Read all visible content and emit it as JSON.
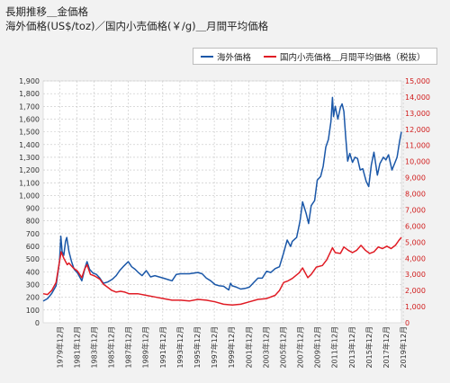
{
  "title_lines": [
    "長期推移＿金価格",
    "海外価格(US$/toz)／国内小売価格(￥/g)＿月間平均価格"
  ],
  "legend": [
    {
      "label": "海外価格",
      "color": "#1a57a8"
    },
    {
      "label": "国内小売価格＿月間平均価格（税抜）",
      "color": "#e01b24"
    }
  ],
  "chart_data": {
    "type": "line",
    "left_axis": {
      "min": 0,
      "max": 1900,
      "step": 100,
      "ticks": [
        "0",
        "100",
        "200",
        "300",
        "400",
        "500",
        "600",
        "700",
        "800",
        "900",
        "1,000",
        "1,100",
        "1,200",
        "1,300",
        "1,400",
        "1,500",
        "1,600",
        "1,700",
        "1,800",
        "1,900"
      ]
    },
    "right_axis": {
      "min": 0,
      "max": 15000,
      "step": 1000,
      "ticks": [
        "0",
        "1,000",
        "2,000",
        "3,000",
        "4,000",
        "5,000",
        "6,000",
        "7,000",
        "8,000",
        "9,000",
        "10,000",
        "11,000",
        "12,000",
        "13,000",
        "14,000",
        "15,000"
      ]
    },
    "x_range": [
      1978,
      2019.7
    ],
    "x_labels": [
      "1979年12月",
      "1981年12月",
      "1983年12月",
      "1985年12月",
      "1987年12月",
      "1989年12月",
      "1991年12月",
      "1993年12月",
      "1995年12月",
      "1997年12月",
      "1999年12月",
      "2001年12月",
      "2003年12月",
      "2005年12月",
      "2007年12月",
      "2009年12月",
      "2011年12月",
      "2013年12月",
      "2015年12月",
      "2017年12月",
      "2019年12月"
    ],
    "series": [
      {
        "name": "海外価格",
        "axis": "left",
        "points": [
          [
            1978.0,
            170
          ],
          [
            1978.5,
            190
          ],
          [
            1979.0,
            230
          ],
          [
            1979.5,
            290
          ],
          [
            1979.9,
            480
          ],
          [
            1980.05,
            680
          ],
          [
            1980.2,
            560
          ],
          [
            1980.4,
            530
          ],
          [
            1980.6,
            640
          ],
          [
            1980.75,
            670
          ],
          [
            1981.0,
            560
          ],
          [
            1981.3,
            480
          ],
          [
            1981.6,
            420
          ],
          [
            1982.0,
            390
          ],
          [
            1982.5,
            330
          ],
          [
            1982.9,
            440
          ],
          [
            1983.1,
            480
          ],
          [
            1983.4,
            420
          ],
          [
            1983.8,
            390
          ],
          [
            1984.2,
            380
          ],
          [
            1984.6,
            350
          ],
          [
            1985.0,
            310
          ],
          [
            1985.5,
            320
          ],
          [
            1986.0,
            340
          ],
          [
            1986.5,
            370
          ],
          [
            1986.9,
            410
          ],
          [
            1987.3,
            440
          ],
          [
            1987.9,
            480
          ],
          [
            1988.3,
            440
          ],
          [
            1988.7,
            420
          ],
          [
            1989.0,
            400
          ],
          [
            1989.5,
            370
          ],
          [
            1990.0,
            410
          ],
          [
            1990.5,
            360
          ],
          [
            1991.0,
            370
          ],
          [
            1991.5,
            360
          ],
          [
            1992.0,
            350
          ],
          [
            1992.5,
            340
          ],
          [
            1993.0,
            330
          ],
          [
            1993.5,
            380
          ],
          [
            1994.0,
            385
          ],
          [
            1995.0,
            385
          ],
          [
            1996.0,
            395
          ],
          [
            1996.5,
            385
          ],
          [
            1997.0,
            350
          ],
          [
            1997.5,
            330
          ],
          [
            1998.0,
            300
          ],
          [
            1998.5,
            290
          ],
          [
            1999.0,
            287
          ],
          [
            1999.6,
            258
          ],
          [
            1999.8,
            310
          ],
          [
            2000.0,
            290
          ],
          [
            2000.5,
            280
          ],
          [
            2001.0,
            265
          ],
          [
            2001.5,
            270
          ],
          [
            2002.0,
            280
          ],
          [
            2002.5,
            315
          ],
          [
            2003.0,
            350
          ],
          [
            2003.5,
            350
          ],
          [
            2004.0,
            405
          ],
          [
            2004.5,
            395
          ],
          [
            2005.0,
            425
          ],
          [
            2005.5,
            440
          ],
          [
            2006.0,
            550
          ],
          [
            2006.4,
            650
          ],
          [
            2006.8,
            600
          ],
          [
            2007.0,
            640
          ],
          [
            2007.5,
            670
          ],
          [
            2007.9,
            800
          ],
          [
            2008.2,
            950
          ],
          [
            2008.6,
            860
          ],
          [
            2008.9,
            780
          ],
          [
            2009.2,
            920
          ],
          [
            2009.6,
            960
          ],
          [
            2009.9,
            1120
          ],
          [
            2010.3,
            1150
          ],
          [
            2010.6,
            1230
          ],
          [
            2010.9,
            1380
          ],
          [
            2011.2,
            1440
          ],
          [
            2011.5,
            1580
          ],
          [
            2011.67,
            1770
          ],
          [
            2011.8,
            1620
          ],
          [
            2012.0,
            1700
          ],
          [
            2012.3,
            1600
          ],
          [
            2012.6,
            1690
          ],
          [
            2012.8,
            1720
          ],
          [
            2013.0,
            1660
          ],
          [
            2013.2,
            1470
          ],
          [
            2013.45,
            1270
          ],
          [
            2013.7,
            1330
          ],
          [
            2014.0,
            1260
          ],
          [
            2014.3,
            1300
          ],
          [
            2014.6,
            1290
          ],
          [
            2014.9,
            1200
          ],
          [
            2015.2,
            1210
          ],
          [
            2015.6,
            1110
          ],
          [
            2015.9,
            1070
          ],
          [
            2016.2,
            1240
          ],
          [
            2016.5,
            1340
          ],
          [
            2016.9,
            1160
          ],
          [
            2017.2,
            1250
          ],
          [
            2017.6,
            1300
          ],
          [
            2017.9,
            1280
          ],
          [
            2018.2,
            1320
          ],
          [
            2018.6,
            1200
          ],
          [
            2018.9,
            1250
          ],
          [
            2019.2,
            1300
          ],
          [
            2019.5,
            1430
          ],
          [
            2019.7,
            1500
          ]
        ]
      },
      {
        "name": "国内小売価格＿月間平均価格（税抜）",
        "axis": "right",
        "points": [
          [
            1978.0,
            1800
          ],
          [
            1978.5,
            1750
          ],
          [
            1979.0,
            2000
          ],
          [
            1979.5,
            2500
          ],
          [
            1979.9,
            3800
          ],
          [
            1980.1,
            4400
          ],
          [
            1980.4,
            4000
          ],
          [
            1980.8,
            3600
          ],
          [
            1981.0,
            3700
          ],
          [
            1981.5,
            3400
          ],
          [
            1982.0,
            3200
          ],
          [
            1982.5,
            2800
          ],
          [
            1982.8,
            3300
          ],
          [
            1983.1,
            3600
          ],
          [
            1983.5,
            3000
          ],
          [
            1984.0,
            2900
          ],
          [
            1984.6,
            2700
          ],
          [
            1985.0,
            2400
          ],
          [
            1985.5,
            2200
          ],
          [
            1986.0,
            2000
          ],
          [
            1986.5,
            1900
          ],
          [
            1987.0,
            1950
          ],
          [
            1987.5,
            1900
          ],
          [
            1988.0,
            1800
          ],
          [
            1989.0,
            1800
          ],
          [
            1990.0,
            1700
          ],
          [
            1991.0,
            1600
          ],
          [
            1992.0,
            1500
          ],
          [
            1993.0,
            1400
          ],
          [
            1994.0,
            1400
          ],
          [
            1995.0,
            1350
          ],
          [
            1996.0,
            1450
          ],
          [
            1997.0,
            1400
          ],
          [
            1998.0,
            1300
          ],
          [
            1999.0,
            1150
          ],
          [
            2000.0,
            1100
          ],
          [
            2001.0,
            1150
          ],
          [
            2002.0,
            1300
          ],
          [
            2003.0,
            1450
          ],
          [
            2004.0,
            1500
          ],
          [
            2005.0,
            1700
          ],
          [
            2005.5,
            2000
          ],
          [
            2006.0,
            2500
          ],
          [
            2006.5,
            2600
          ],
          [
            2007.0,
            2750
          ],
          [
            2007.8,
            3100
          ],
          [
            2008.2,
            3400
          ],
          [
            2008.8,
            2800
          ],
          [
            2009.2,
            3000
          ],
          [
            2009.8,
            3450
          ],
          [
            2010.5,
            3550
          ],
          [
            2011.0,
            3900
          ],
          [
            2011.67,
            4650
          ],
          [
            2012.0,
            4350
          ],
          [
            2012.6,
            4300
          ],
          [
            2013.0,
            4700
          ],
          [
            2013.5,
            4500
          ],
          [
            2014.0,
            4350
          ],
          [
            2014.5,
            4500
          ],
          [
            2015.0,
            4800
          ],
          [
            2015.5,
            4500
          ],
          [
            2016.0,
            4300
          ],
          [
            2016.5,
            4400
          ],
          [
            2017.0,
            4700
          ],
          [
            2017.5,
            4600
          ],
          [
            2018.0,
            4750
          ],
          [
            2018.5,
            4600
          ],
          [
            2019.0,
            4800
          ],
          [
            2019.4,
            5100
          ],
          [
            2019.7,
            5300
          ]
        ]
      }
    ]
  }
}
